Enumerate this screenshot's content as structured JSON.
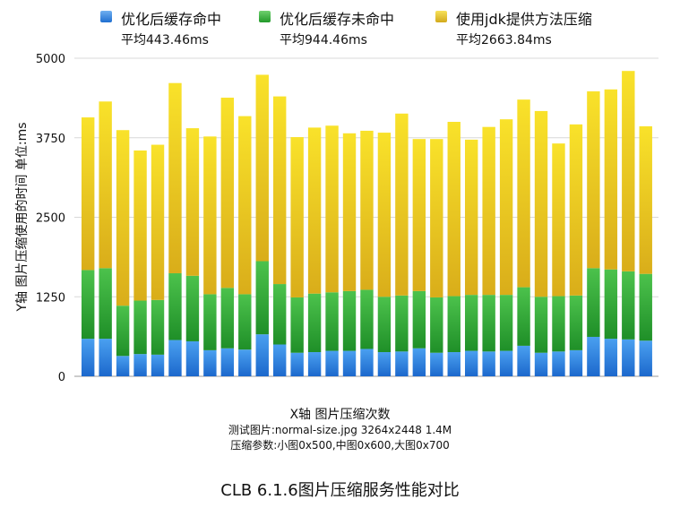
{
  "chart_data": {
    "type": "bar",
    "stacked": true,
    "caption": "CLB 6.1.6图片压缩服务性能对比",
    "xlabel": "X轴 图片压缩次数",
    "ylabel": "Y轴 图片压缩使用的时间 单位:ms",
    "notes": [
      "测试图片:normal-size.jpg 3264x2448 1.4M",
      "压缩参数:小图0x500,中图0x600,大图0x700"
    ],
    "ylim": [
      0,
      5000
    ],
    "yticks": [
      "0",
      "1250",
      "2500",
      "3750",
      "5000"
    ],
    "grid": true,
    "legend_position": "top",
    "series": [
      {
        "name": "优化后缓存命中",
        "average_label": "平均443.46ms",
        "color": "#2a7fd8",
        "values": [
          590,
          590,
          320,
          350,
          340,
          570,
          550,
          410,
          440,
          420,
          660,
          500,
          370,
          380,
          400,
          400,
          430,
          380,
          390,
          440,
          370,
          380,
          400,
          390,
          400,
          480,
          370,
          390,
          410,
          620,
          590,
          580,
          560
        ]
      },
      {
        "name": "优化后缓存未命中",
        "average_label": "平均944.46ms",
        "color": "#36a83a",
        "values": [
          1080,
          1110,
          790,
          840,
          860,
          1050,
          1030,
          880,
          950,
          870,
          1150,
          950,
          870,
          920,
          920,
          940,
          930,
          870,
          880,
          900,
          870,
          880,
          880,
          890,
          880,
          920,
          880,
          870,
          860,
          1080,
          1090,
          1070,
          1050
        ]
      },
      {
        "name": "使用jdk提供方法压缩",
        "average_label": "平均2663.84ms",
        "color": "#e6c21f",
        "values": [
          2400,
          2620,
          2760,
          2360,
          2440,
          2990,
          2320,
          2480,
          2990,
          2800,
          2930,
          2950,
          2520,
          2610,
          2620,
          2480,
          2500,
          2580,
          2860,
          2390,
          2490,
          2740,
          2440,
          2640,
          2760,
          2950,
          2920,
          2400,
          2690,
          2780,
          2830,
          3150,
          2320
        ]
      }
    ]
  }
}
